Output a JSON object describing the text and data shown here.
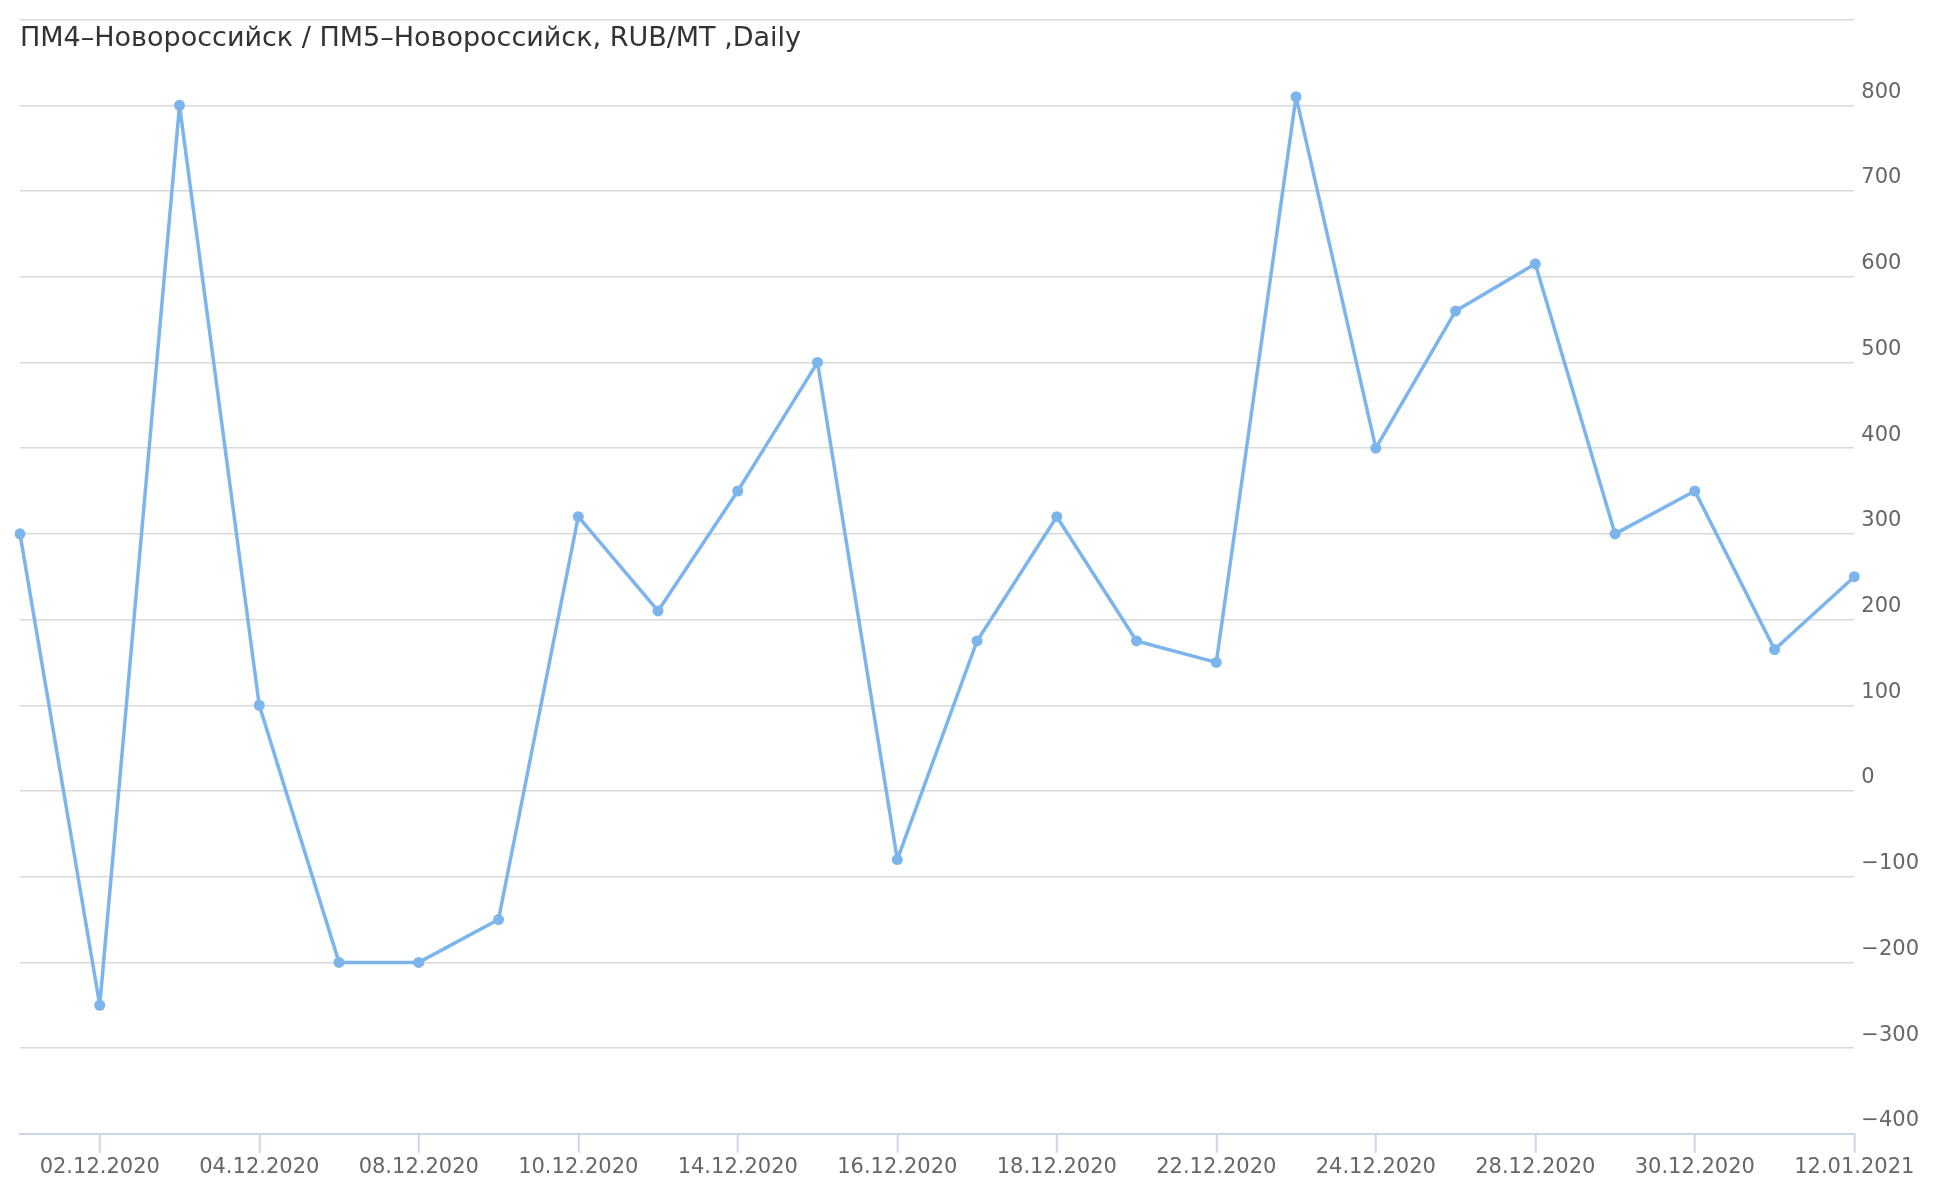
{
  "chart_data": {
    "type": "line",
    "title": "ПМ4–Новороссийск / ПМ5–Новороссийск, RUB/MT ,Daily",
    "categories": [
      null,
      "02.12.2020",
      null,
      "04.12.2020",
      null,
      "08.12.2020",
      null,
      "10.12.2020",
      null,
      "14.12.2020",
      null,
      "16.12.2020",
      null,
      "18.12.2020",
      null,
      "22.12.2020",
      null,
      "24.12.2020",
      null,
      "28.12.2020",
      null,
      "30.12.2020",
      null,
      "12.01.2021"
    ],
    "values": [
      300,
      -250,
      800,
      100,
      -200,
      -200,
      -150,
      320,
      210,
      350,
      500,
      -80,
      175,
      320,
      175,
      150,
      810,
      400,
      560,
      615,
      300,
      350,
      165,
      250
    ],
    "color": "#7cb5ec",
    "ylim": [
      -400,
      900
    ],
    "yticks": [
      {
        "value": -400,
        "label": "−400"
      },
      {
        "value": -300,
        "label": "−300"
      },
      {
        "value": -200,
        "label": "−200"
      },
      {
        "value": -100,
        "label": "−100"
      },
      0,
      100,
      200,
      300,
      400,
      500,
      600,
      700,
      800,
      {
        "value": 900,
        "label": null
      }
    ],
    "grid": "y",
    "marker": "circle",
    "line_style": "solid"
  }
}
